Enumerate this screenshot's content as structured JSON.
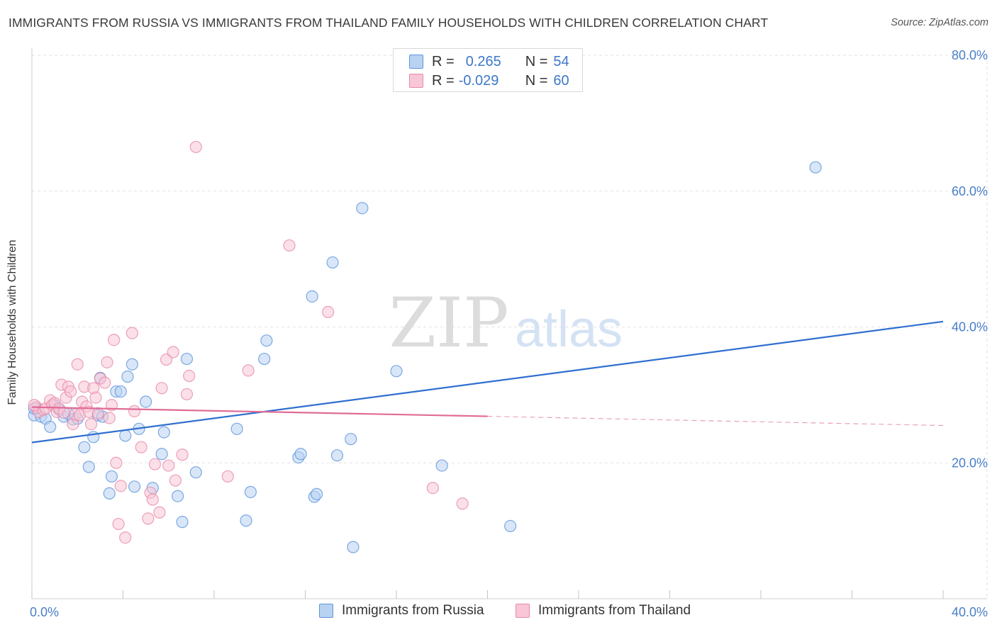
{
  "title": "IMMIGRANTS FROM RUSSIA VS IMMIGRANTS FROM THAILAND FAMILY HOUSEHOLDS WITH CHILDREN CORRELATION CHART",
  "source": "Source: ZipAtlas.com",
  "watermark": {
    "zip": "ZIP",
    "atlas": "atlas"
  },
  "legend_top": [
    {
      "r_label": "R =",
      "r_value": "0.265",
      "n_label": "N =",
      "n_value": "54"
    },
    {
      "r_label": "R =",
      "r_value": "-0.029",
      "n_label": "N =",
      "n_value": "60"
    }
  ],
  "legend_bottom": [
    {
      "label": "Immigrants from Russia",
      "color": "#5f95dc"
    },
    {
      "label": "Immigrants from Thailand",
      "color": "#e88aaa"
    }
  ],
  "chart_data": {
    "type": "scatter",
    "title": "IMMIGRANTS FROM RUSSIA VS IMMIGRANTS FROM THAILAND FAMILY HOUSEHOLDS WITH CHILDREN CORRELATION CHART",
    "xlabel": "",
    "ylabel": "Family Households with Children",
    "xlim": [
      0,
      40
    ],
    "ylim": [
      0,
      80
    ],
    "x_tick_labels": [
      "0.0%",
      "40.0%"
    ],
    "y_ticks": [
      20,
      40,
      60,
      80
    ],
    "y_tick_labels": [
      "20.0%",
      "40.0%",
      "60.0%",
      "80.0%"
    ],
    "grid": true,
    "series": [
      {
        "name": "Immigrants from Russia",
        "color": "#5f95dc",
        "fill": "#b8d2f2",
        "r": 0.265,
        "n": 54,
        "trend": {
          "x": [
            0,
            40
          ],
          "y": [
            23.0,
            40.8
          ],
          "dashed_from": null
        },
        "points": [
          [
            0.1,
            27.0
          ],
          [
            0.2,
            28.0
          ],
          [
            0.4,
            26.8
          ],
          [
            0.6,
            26.5
          ],
          [
            0.8,
            25.3
          ],
          [
            1.0,
            28.5
          ],
          [
            1.2,
            27.8
          ],
          [
            1.4,
            26.8
          ],
          [
            1.6,
            27.2
          ],
          [
            1.8,
            26.4
          ],
          [
            2.0,
            26.5
          ],
          [
            2.3,
            22.3
          ],
          [
            2.5,
            19.4
          ],
          [
            2.7,
            23.8
          ],
          [
            2.9,
            27.0
          ],
          [
            3.0,
            32.5
          ],
          [
            3.1,
            26.8
          ],
          [
            3.4,
            15.5
          ],
          [
            3.5,
            18.0
          ],
          [
            3.7,
            30.5
          ],
          [
            3.9,
            30.5
          ],
          [
            4.1,
            24.0
          ],
          [
            4.2,
            32.7
          ],
          [
            4.4,
            34.5
          ],
          [
            4.5,
            16.5
          ],
          [
            4.7,
            25.0
          ],
          [
            5.0,
            29.0
          ],
          [
            5.3,
            16.3
          ],
          [
            5.7,
            21.3
          ],
          [
            5.8,
            24.5
          ],
          [
            6.4,
            15.1
          ],
          [
            6.6,
            11.3
          ],
          [
            6.8,
            35.3
          ],
          [
            7.2,
            18.6
          ],
          [
            9.0,
            25.0
          ],
          [
            9.4,
            11.5
          ],
          [
            9.6,
            15.7
          ],
          [
            10.2,
            35.3
          ],
          [
            10.3,
            38.0
          ],
          [
            11.7,
            20.8
          ],
          [
            11.8,
            21.3
          ],
          [
            12.3,
            44.5
          ],
          [
            12.4,
            15.0
          ],
          [
            12.5,
            15.4
          ],
          [
            13.2,
            49.5
          ],
          [
            13.4,
            21.1
          ],
          [
            14.0,
            23.5
          ],
          [
            14.1,
            7.6
          ],
          [
            14.5,
            57.5
          ],
          [
            16.0,
            33.5
          ],
          [
            18.0,
            19.6
          ],
          [
            21.0,
            10.7
          ],
          [
            34.4,
            63.5
          ],
          [
            0.1,
            28.0
          ]
        ]
      },
      {
        "name": "Immigrants from Thailand",
        "color": "#e88aaa",
        "fill": "#f8c6d6",
        "r": -0.029,
        "n": 60,
        "trend": {
          "x": [
            0,
            40
          ],
          "y": [
            28.2,
            25.5
          ],
          "dashed_from": 20
        },
        "points": [
          [
            0.2,
            28.2
          ],
          [
            0.3,
            27.5
          ],
          [
            0.5,
            27.8
          ],
          [
            0.6,
            28.0
          ],
          [
            0.8,
            29.2
          ],
          [
            0.9,
            28.5
          ],
          [
            1.0,
            28.8
          ],
          [
            1.1,
            27.5
          ],
          [
            1.2,
            28.0
          ],
          [
            1.3,
            31.5
          ],
          [
            1.4,
            27.4
          ],
          [
            1.5,
            29.6
          ],
          [
            1.6,
            31.2
          ],
          [
            1.7,
            30.5
          ],
          [
            1.8,
            25.7
          ],
          [
            1.9,
            27.1
          ],
          [
            2.0,
            34.5
          ],
          [
            2.1,
            27.0
          ],
          [
            2.2,
            29.0
          ],
          [
            2.3,
            31.2
          ],
          [
            2.4,
            28.3
          ],
          [
            2.5,
            27.5
          ],
          [
            2.6,
            25.7
          ],
          [
            2.7,
            31.0
          ],
          [
            2.8,
            29.6
          ],
          [
            2.9,
            27.3
          ],
          [
            3.0,
            32.4
          ],
          [
            3.2,
            31.8
          ],
          [
            3.3,
            34.8
          ],
          [
            3.4,
            26.6
          ],
          [
            3.5,
            28.5
          ],
          [
            3.6,
            38.1
          ],
          [
            3.7,
            20.0
          ],
          [
            3.8,
            11.0
          ],
          [
            3.9,
            16.6
          ],
          [
            4.1,
            9.0
          ],
          [
            4.4,
            39.1
          ],
          [
            4.5,
            27.6
          ],
          [
            4.8,
            22.3
          ],
          [
            5.1,
            11.8
          ],
          [
            5.2,
            15.6
          ],
          [
            5.3,
            14.6
          ],
          [
            5.4,
            19.8
          ],
          [
            5.6,
            12.7
          ],
          [
            5.7,
            31.0
          ],
          [
            5.9,
            35.2
          ],
          [
            6.0,
            19.6
          ],
          [
            6.2,
            36.3
          ],
          [
            6.3,
            17.4
          ],
          [
            6.6,
            21.2
          ],
          [
            6.8,
            30.1
          ],
          [
            6.9,
            32.8
          ],
          [
            7.2,
            66.5
          ],
          [
            8.6,
            18.0
          ],
          [
            9.5,
            33.6
          ],
          [
            11.3,
            52.0
          ],
          [
            13.0,
            42.2
          ],
          [
            17.6,
            16.3
          ],
          [
            18.9,
            14.0
          ],
          [
            0.1,
            28.5
          ]
        ]
      }
    ]
  }
}
